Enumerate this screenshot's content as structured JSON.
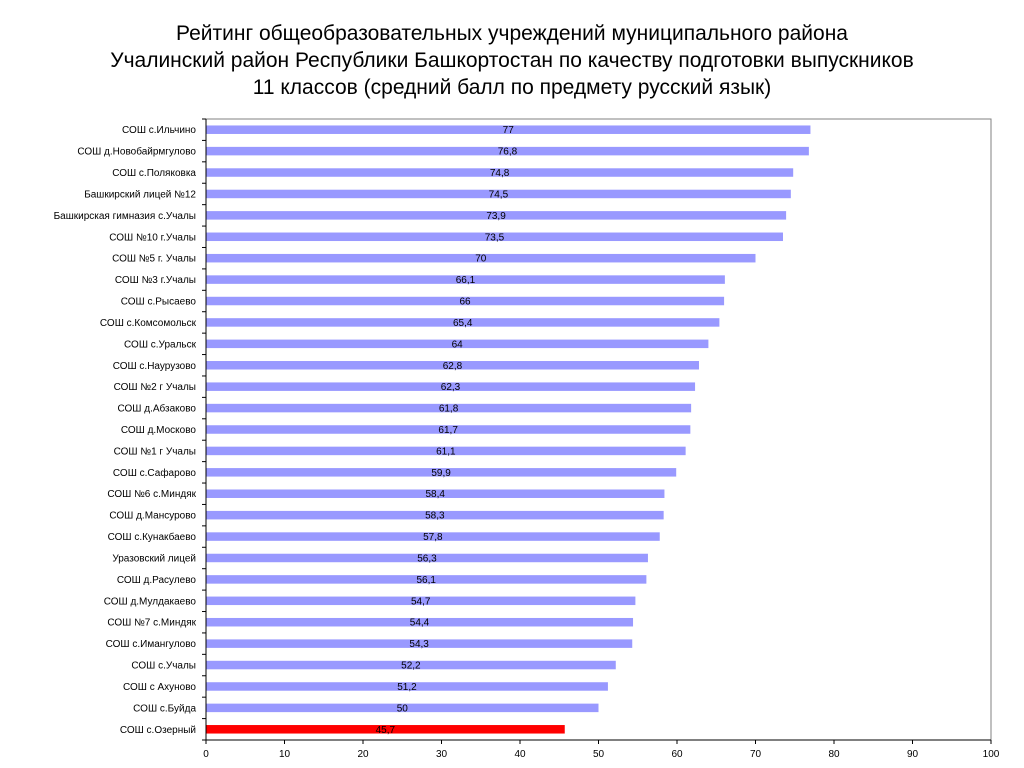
{
  "title_lines": [
    "Рейтинг общеобразовательных учреждений муниципального района",
    "Учалинский район Республики Башкортостан по качеству подготовки выпускников",
    "11 классов (средний балл по предмету русский язык)"
  ],
  "chart_data": {
    "type": "bar",
    "orientation": "horizontal",
    "title": "Рейтинг общеобразовательных учреждений муниципального района Учалинский район Республики Башкортостан по качеству подготовки выпускников 11 классов (средний балл по предмету русский язык)",
    "xlim": [
      0,
      100
    ],
    "xticks": [
      0,
      10,
      20,
      30,
      40,
      50,
      60,
      70,
      80,
      90,
      100
    ],
    "grid": false,
    "legend": "none",
    "categories": [
      "СОШ с.Ильчино",
      "СОШ д.Новобайрмгулово",
      "СОШ с.Поляковка",
      "Башкирский лицей №12",
      "Башкирская гимназия с.Учалы",
      "СОШ №10 г.Учалы",
      "СОШ №5  г. Учалы",
      "СОШ №3 г.Учалы",
      "СОШ с.Рысаево",
      "СОШ с.Комсомольск",
      "СОШ с.Уральск",
      "СОШ с.Наурузово",
      "СОШ №2 г Учалы",
      "СОШ д.Абзаково",
      "СОШ д.Москово",
      "СОШ №1 г Учалы",
      "СОШ с.Сафарово",
      "СОШ №6  с.Миндяк",
      "СОШ д.Мансурово",
      "СОШ с.Кунакбаево",
      "Уразовский лицей",
      "СОШ д.Расулево",
      "СОШ д.Мулдакаево",
      "СОШ №7 с.Миндяк",
      "СОШ с.Имангулово",
      "СОШ с.Учалы",
      "СОШ  с Ахуново",
      "СОШ с.Буйда",
      "СОШ с.Озерный"
    ],
    "values": [
      77,
      76.8,
      74.8,
      74.5,
      73.9,
      73.5,
      70,
      66.1,
      66,
      65.4,
      64,
      62.8,
      62.3,
      61.8,
      61.7,
      61.1,
      59.9,
      58.4,
      58.3,
      57.8,
      56.3,
      56.1,
      54.7,
      54.4,
      54.3,
      52.2,
      51.2,
      50,
      45.7
    ],
    "value_labels": [
      "77",
      "76,8",
      "74,8",
      "74,5",
      "73,9",
      "73,5",
      "70",
      "66,1",
      "66",
      "65,4",
      "64",
      "62,8",
      "62,3",
      "61,8",
      "61,7",
      "61,1",
      "59,9",
      "58,4",
      "58,3",
      "57,8",
      "56,3",
      "56,1",
      "54,7",
      "54,4",
      "54,3",
      "52,2",
      "51,2",
      "50",
      "45,7"
    ],
    "highlight_index": 28,
    "colors": {
      "bar": "#9999ff",
      "highlight": "#ff0000",
      "axis": "#000000",
      "frame": "#808080"
    }
  }
}
